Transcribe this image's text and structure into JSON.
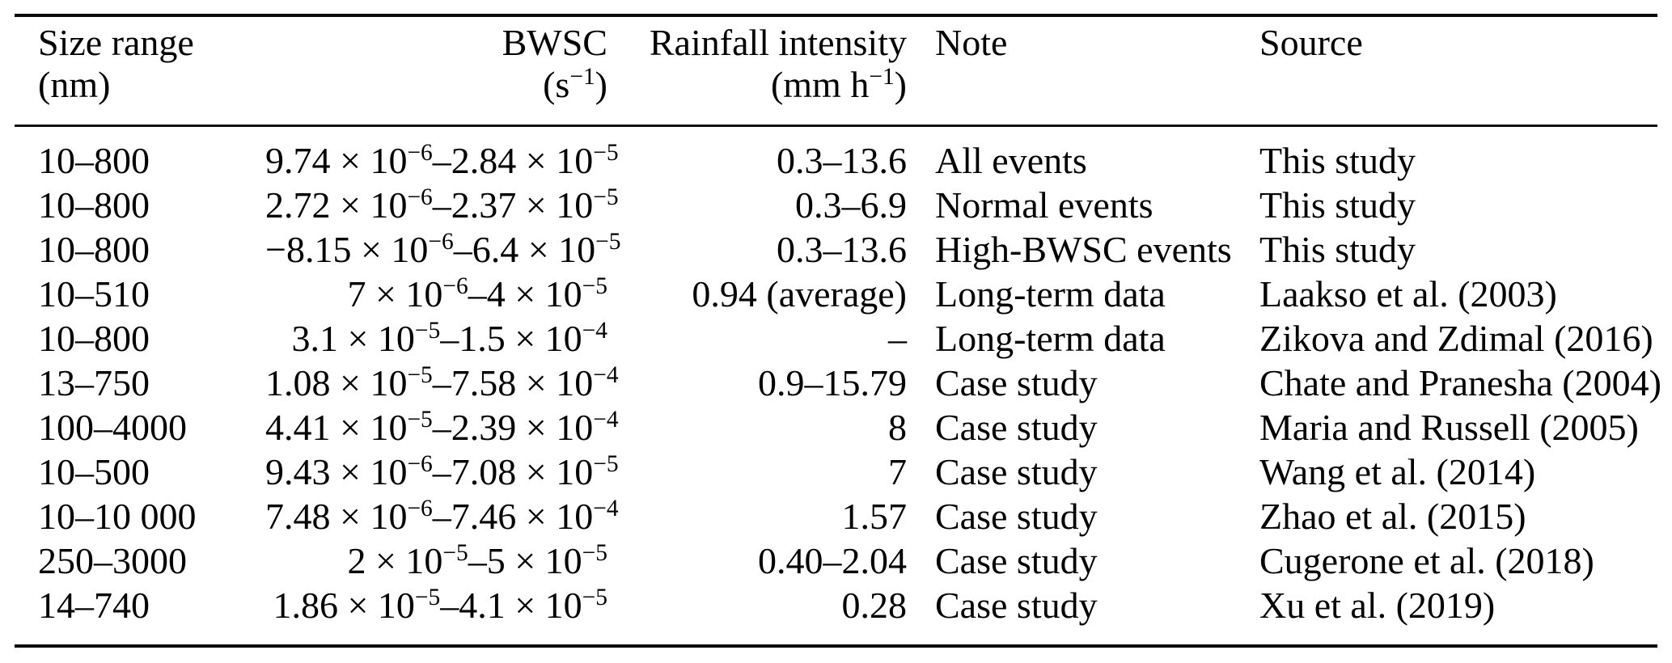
{
  "table": {
    "columns": [
      {
        "id": "size",
        "line1": "Size range",
        "line2": "(nm)"
      },
      {
        "id": "bwsc",
        "line1": "BWSC",
        "line2": [
          {
            "t": "(s"
          },
          {
            "t": "−1",
            "sup": true
          },
          {
            "t": ")"
          }
        ]
      },
      {
        "id": "rain",
        "line1": "Rainfall intensity",
        "line2": [
          {
            "t": "(mm h"
          },
          {
            "t": "−1",
            "sup": true
          },
          {
            "t": ")"
          }
        ]
      },
      {
        "id": "note",
        "line1": "Note"
      },
      {
        "id": "source",
        "line1": "Source"
      }
    ],
    "rows": [
      {
        "size": "10–800",
        "bwsc": [
          {
            "t": "9.74 × 10"
          },
          {
            "t": "−6",
            "sup": true
          },
          {
            "t": "–2.84 × 10"
          },
          {
            "t": "−5",
            "sup": true
          }
        ],
        "rain": "0.3–13.6",
        "note": "All events",
        "source": "This study"
      },
      {
        "size": "10–800",
        "bwsc": [
          {
            "t": "2.72 × 10"
          },
          {
            "t": "−6",
            "sup": true
          },
          {
            "t": "–2.37 × 10"
          },
          {
            "t": "−5",
            "sup": true
          }
        ],
        "rain": "0.3–6.9",
        "note": "Normal events",
        "source": "This study"
      },
      {
        "size": "10–800",
        "bwsc": [
          {
            "t": "−8.15 × 10"
          },
          {
            "t": "−6",
            "sup": true
          },
          {
            "t": "–6.4 × 10"
          },
          {
            "t": "−5",
            "sup": true
          }
        ],
        "rain": "0.3–13.6",
        "note": "High-BWSC events",
        "source": "This study"
      },
      {
        "size": "10–510",
        "bwsc": [
          {
            "t": "7 × 10"
          },
          {
            "t": "−6",
            "sup": true
          },
          {
            "t": "–4 × 10"
          },
          {
            "t": "−5",
            "sup": true
          }
        ],
        "rain": "0.94 (average)",
        "note": "Long-term data",
        "source": "Laakso et al. (2003)"
      },
      {
        "size": "10–800",
        "bwsc": [
          {
            "t": "3.1 × 10"
          },
          {
            "t": "−5",
            "sup": true
          },
          {
            "t": "–1.5 × 10"
          },
          {
            "t": "−4",
            "sup": true
          }
        ],
        "rain": "–",
        "note": "Long-term data",
        "source": "Zikova and Zdimal (2016)"
      },
      {
        "size": "13–750",
        "bwsc": [
          {
            "t": "1.08 × 10"
          },
          {
            "t": "−5",
            "sup": true
          },
          {
            "t": "–7.58 × 10"
          },
          {
            "t": "−4",
            "sup": true
          }
        ],
        "rain": "0.9–15.79",
        "note": "Case study",
        "source": "Chate and Pranesha (2004)"
      },
      {
        "size": "100–4000",
        "bwsc": [
          {
            "t": "4.41 × 10"
          },
          {
            "t": "−5",
            "sup": true
          },
          {
            "t": "–2.39 × 10"
          },
          {
            "t": "−4",
            "sup": true
          }
        ],
        "rain": "8",
        "note": "Case study",
        "source": "Maria and Russell (2005)"
      },
      {
        "size": "10–500",
        "bwsc": [
          {
            "t": "9.43 × 10"
          },
          {
            "t": "−6",
            "sup": true
          },
          {
            "t": "–7.08 × 10"
          },
          {
            "t": "−5",
            "sup": true
          }
        ],
        "rain": "7",
        "note": "Case study",
        "source": "Wang et al. (2014)"
      },
      {
        "size": "10–10 000",
        "bwsc": [
          {
            "t": "7.48 × 10"
          },
          {
            "t": "−6",
            "sup": true
          },
          {
            "t": "–7.46 × 10"
          },
          {
            "t": "−4",
            "sup": true
          }
        ],
        "rain": "1.57",
        "note": "Case study",
        "source": "Zhao et al. (2015)"
      },
      {
        "size": "250–3000",
        "bwsc": [
          {
            "t": "2 × 10"
          },
          {
            "t": "−5",
            "sup": true
          },
          {
            "t": "–5 × 10"
          },
          {
            "t": "−5",
            "sup": true
          }
        ],
        "rain": "0.40–2.04",
        "note": "Case study",
        "source": "Cugerone et al. (2018)"
      },
      {
        "size": "14–740",
        "bwsc": [
          {
            "t": "1.86 × 10"
          },
          {
            "t": "−5",
            "sup": true
          },
          {
            "t": "–4.1 × 10"
          },
          {
            "t": "−5",
            "sup": true
          }
        ],
        "rain": "0.28",
        "note": "Case study",
        "source": "Xu et al. (2019)"
      }
    ]
  }
}
